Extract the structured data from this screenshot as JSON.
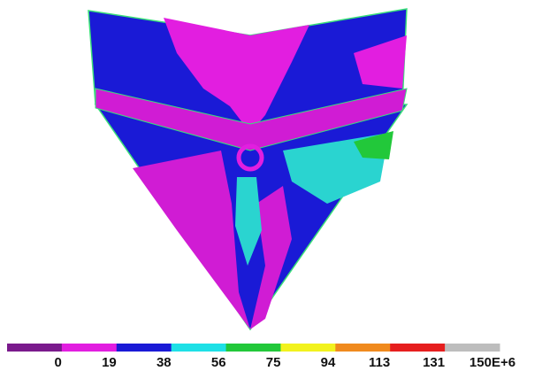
{
  "legend": {
    "colors": [
      "#7a1a8c",
      "#e21ee0",
      "#1a1ad6",
      "#1ee0e6",
      "#22c83a",
      "#f2f21e",
      "#f08a1e",
      "#e61e1e",
      "#bdbdbd"
    ],
    "labels": [
      "0",
      "19",
      "38",
      "56",
      "75",
      "94",
      "113",
      "131",
      "150E+6"
    ]
  }
}
